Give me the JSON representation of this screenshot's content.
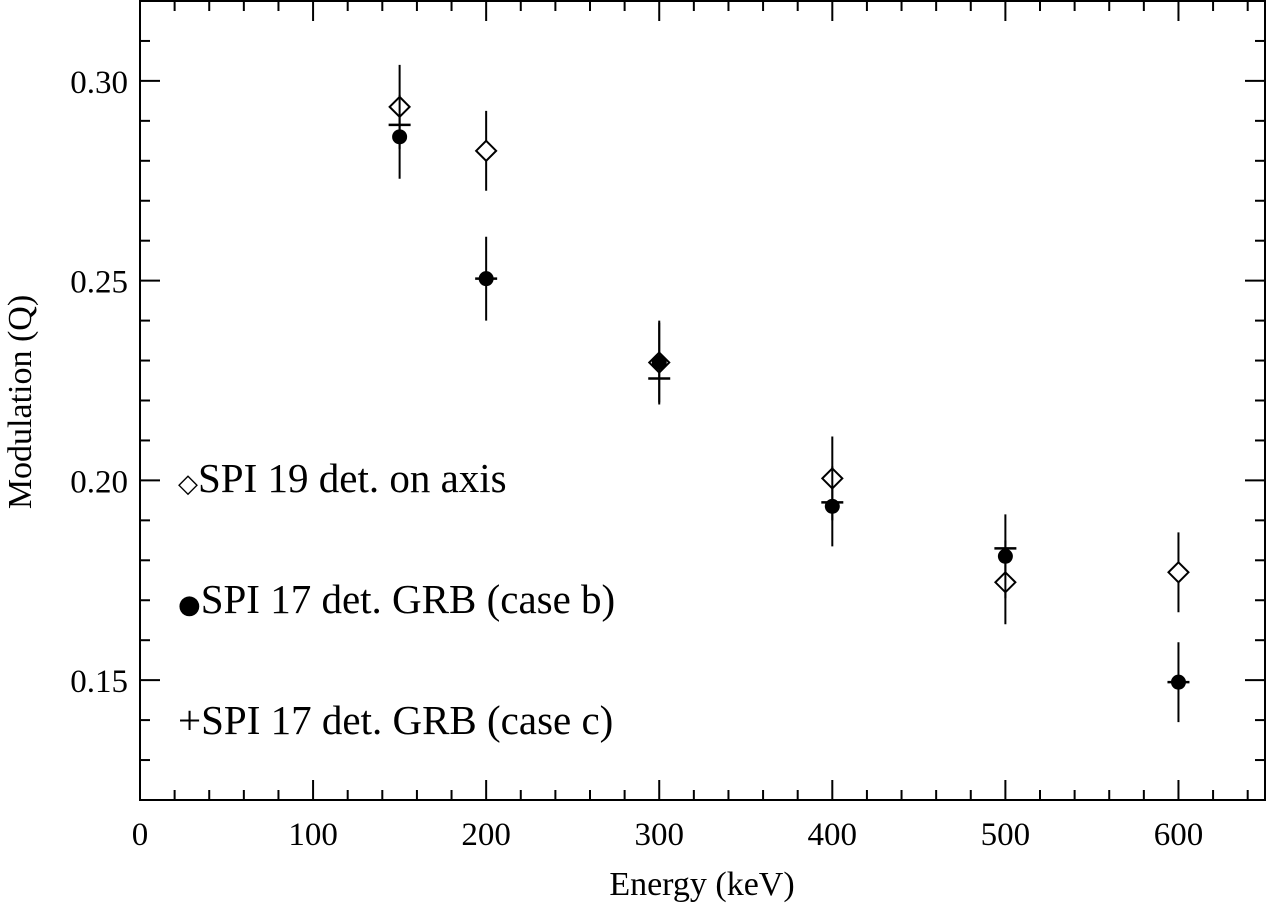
{
  "chart_data": {
    "type": "scatter",
    "title": "",
    "xlabel": "Energy (keV)",
    "ylabel": "Modulation (Q)",
    "xlim": [
      0,
      650
    ],
    "ylim": [
      0.12,
      0.32
    ],
    "x_ticks": [
      0,
      100,
      200,
      300,
      400,
      500,
      600
    ],
    "x_tick_labels": [
      "0",
      "100",
      "200",
      "300",
      "400",
      "500",
      "600"
    ],
    "y_ticks": [
      0.15,
      0.2,
      0.25,
      0.3
    ],
    "y_tick_labels": [
      "0.15",
      "0.20",
      "0.25",
      "0.30"
    ],
    "grid": false,
    "legend_position": "left",
    "series": [
      {
        "name": "SPI 19 det. on axis",
        "marker": "open-diamond",
        "legend_symbol": "◇",
        "points": [
          {
            "x": 150,
            "y": 0.2935,
            "err": 0.0105
          },
          {
            "x": 200,
            "y": 0.2825,
            "err": 0.01
          },
          {
            "x": 300,
            "y": 0.2295,
            "err": 0.01
          },
          {
            "x": 400,
            "y": 0.2005,
            "err": 0.0105
          },
          {
            "x": 500,
            "y": 0.1745,
            "err": 0.0105
          },
          {
            "x": 600,
            "y": 0.177,
            "err": 0.01
          }
        ]
      },
      {
        "name": "SPI 17 det. GRB (case b)",
        "marker": "filled-circle",
        "legend_symbol": "●",
        "points": [
          {
            "x": 150,
            "y": 0.286,
            "err": 0.0105
          },
          {
            "x": 200,
            "y": 0.2505,
            "err": 0.0105
          },
          {
            "x": 300,
            "y": 0.2295,
            "err": 0.0105
          },
          {
            "x": 400,
            "y": 0.1935,
            "err": 0.01
          },
          {
            "x": 500,
            "y": 0.181,
            "err": 0.0105
          },
          {
            "x": 600,
            "y": 0.1495,
            "err": 0.01
          }
        ]
      },
      {
        "name": "SPI 17 det. GRB (case c)",
        "marker": "plus",
        "legend_symbol": "+",
        "points": [
          {
            "x": 150,
            "y": 0.289
          },
          {
            "x": 200,
            "y": 0.2505
          },
          {
            "x": 300,
            "y": 0.2255
          },
          {
            "x": 400,
            "y": 0.1945
          },
          {
            "x": 500,
            "y": 0.183
          },
          {
            "x": 600,
            "y": 0.1495
          }
        ]
      }
    ]
  }
}
